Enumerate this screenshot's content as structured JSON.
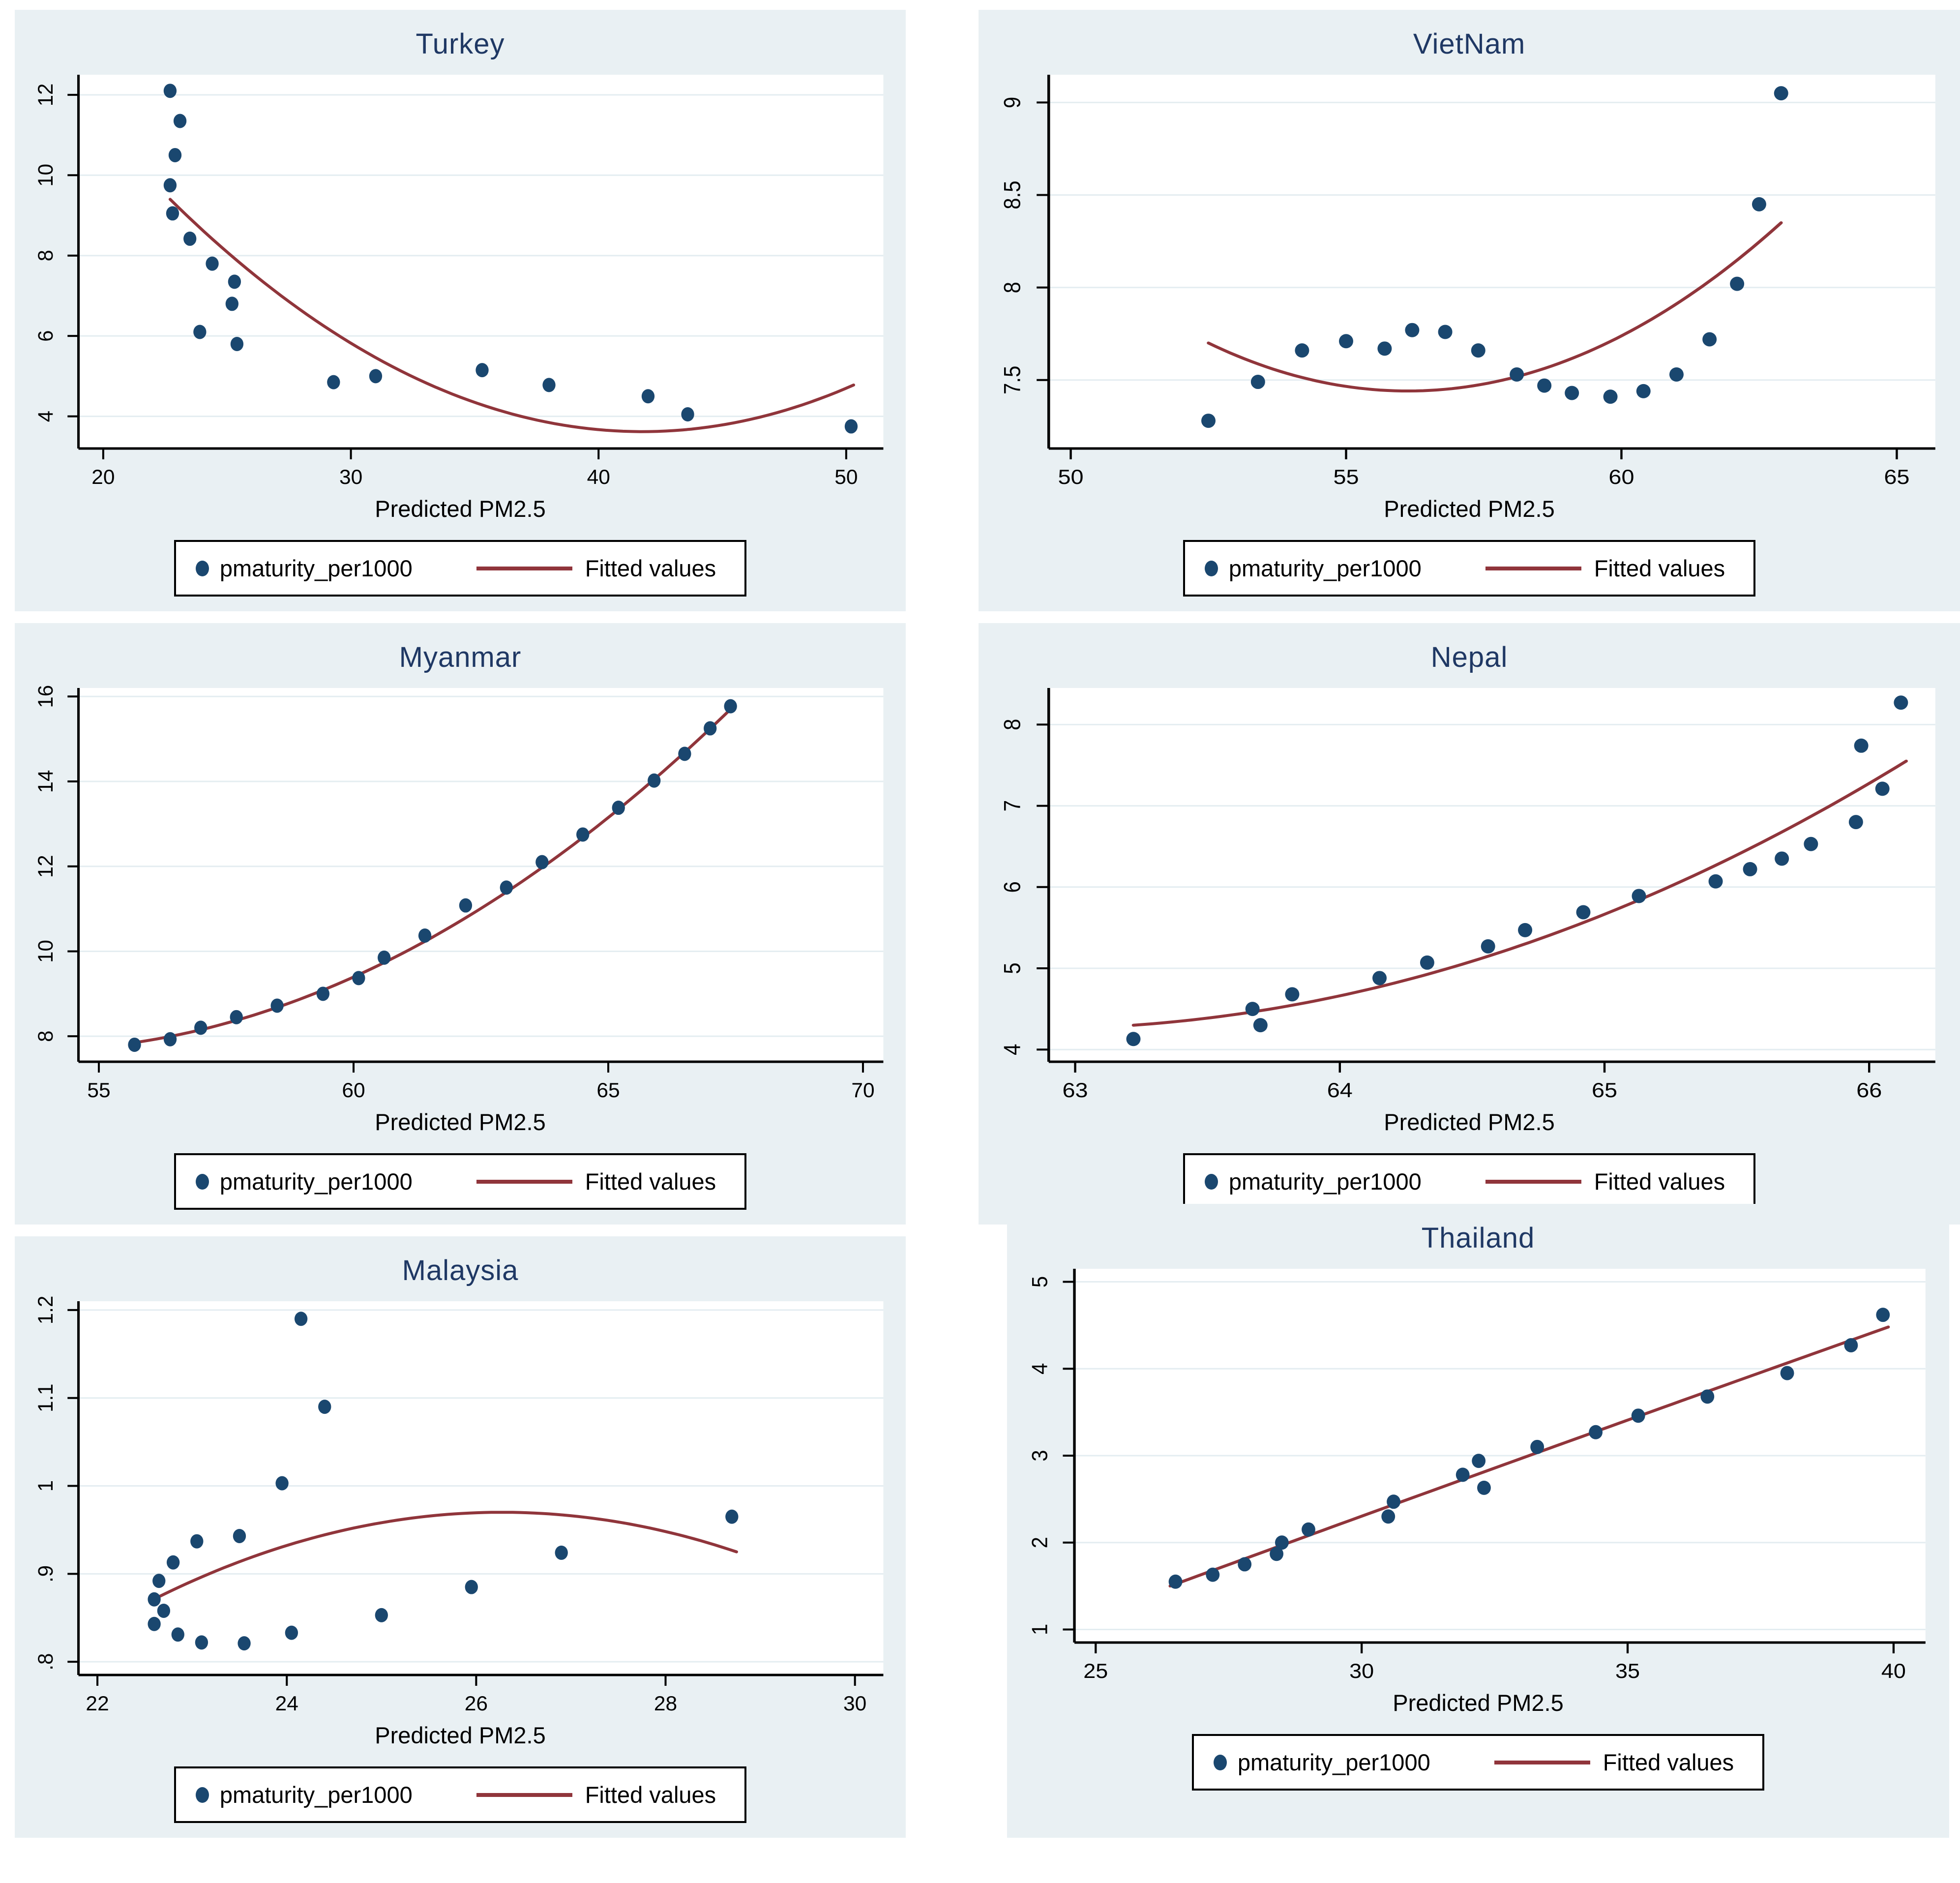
{
  "colors": {
    "marker": "#1a476f",
    "fit_line": "#90353b",
    "panel_bg": "#e9f0f3",
    "plot_bg": "#ffffff",
    "grid": "#e4edf1",
    "axis": "#000000",
    "title": "#1f3864",
    "tick_text": "#000000"
  },
  "chart_data": [
    {
      "type": "scatter",
      "title": "Turkey",
      "xlabel": "Predicted PM2.5",
      "legend": {
        "points_label": "pmaturity_per1000",
        "line_label": "Fitted values"
      },
      "xlim": [
        19.0,
        51.5
      ],
      "ylim": [
        3.2,
        12.5
      ],
      "xticks": {
        "values": [
          20,
          30,
          40,
          50
        ],
        "labels": [
          "20",
          "30",
          "40",
          "50"
        ]
      },
      "yticks": {
        "values": [
          4,
          6,
          8,
          10,
          12
        ],
        "labels": [
          "4",
          "6",
          "8",
          "10",
          "12"
        ]
      },
      "points": [
        [
          22.7,
          12.1
        ],
        [
          23.1,
          11.35
        ],
        [
          22.9,
          10.5
        ],
        [
          22.7,
          9.75
        ],
        [
          22.8,
          9.05
        ],
        [
          23.5,
          8.42
        ],
        [
          24.4,
          7.8
        ],
        [
          25.3,
          7.35
        ],
        [
          25.2,
          6.8
        ],
        [
          23.9,
          6.1
        ],
        [
          25.4,
          5.8
        ],
        [
          29.3,
          4.85
        ],
        [
          31.0,
          5.0
        ],
        [
          35.3,
          5.15
        ],
        [
          38.0,
          4.78
        ],
        [
          42.0,
          4.5
        ],
        [
          43.6,
          4.05
        ],
        [
          50.2,
          3.75
        ]
      ],
      "fit_quadratic_anchors": [
        [
          22.7,
          9.4
        ],
        [
          41.8,
          3.62
        ],
        [
          50.3,
          4.78
        ]
      ]
    },
    {
      "type": "scatter",
      "title": "VietNam",
      "xlabel": "Predicted PM2.5",
      "legend": {
        "points_label": "pmaturity_per1000",
        "line_label": "Fitted values"
      },
      "xlim": [
        49.6,
        65.7
      ],
      "ylim": [
        7.13,
        9.15
      ],
      "xticks": {
        "values": [
          50,
          55,
          60,
          65
        ],
        "labels": [
          "50",
          "55",
          "60",
          "65"
        ]
      },
      "yticks": {
        "values": [
          7.5,
          8,
          8.5,
          9
        ],
        "labels": [
          "7.5",
          "8",
          "8.5",
          "9"
        ]
      },
      "points": [
        [
          52.5,
          7.28
        ],
        [
          53.4,
          7.49
        ],
        [
          54.2,
          7.66
        ],
        [
          55.0,
          7.71
        ],
        [
          55.7,
          7.67
        ],
        [
          56.2,
          7.77
        ],
        [
          56.8,
          7.76
        ],
        [
          57.4,
          7.66
        ],
        [
          58.1,
          7.53
        ],
        [
          58.6,
          7.47
        ],
        [
          59.1,
          7.43
        ],
        [
          59.8,
          7.41
        ],
        [
          60.4,
          7.44
        ],
        [
          61.0,
          7.53
        ],
        [
          61.6,
          7.72
        ],
        [
          62.1,
          8.02
        ],
        [
          62.5,
          8.45
        ],
        [
          62.9,
          9.05
        ]
      ],
      "fit_quadratic_anchors": [
        [
          52.5,
          7.7
        ],
        [
          56.8,
          7.45
        ],
        [
          62.9,
          8.35
        ]
      ]
    },
    {
      "type": "scatter",
      "title": "Myanmar",
      "xlabel": "Predicted PM2.5",
      "legend": {
        "points_label": "pmaturity_per1000",
        "line_label": "Fitted values"
      },
      "xlim": [
        54.6,
        70.4
      ],
      "ylim": [
        7.4,
        16.2
      ],
      "xticks": {
        "values": [
          55,
          60,
          65,
          70
        ],
        "labels": [
          "55",
          "60",
          "65",
          "70"
        ]
      },
      "yticks": {
        "values": [
          8,
          10,
          12,
          14,
          16
        ],
        "labels": [
          "8",
          "10",
          "12",
          "14",
          "16"
        ]
      },
      "points": [
        [
          55.7,
          7.8
        ],
        [
          56.4,
          7.93
        ],
        [
          57.0,
          8.2
        ],
        [
          57.7,
          8.45
        ],
        [
          58.5,
          8.72
        ],
        [
          59.4,
          9.0
        ],
        [
          60.1,
          9.37
        ],
        [
          60.6,
          9.85
        ],
        [
          61.4,
          10.37
        ],
        [
          62.2,
          11.08
        ],
        [
          63.0,
          11.5
        ],
        [
          63.7,
          12.1
        ],
        [
          64.5,
          12.75
        ],
        [
          65.2,
          13.38
        ],
        [
          65.9,
          14.02
        ],
        [
          66.5,
          14.65
        ],
        [
          67.0,
          15.25
        ],
        [
          67.4,
          15.77
        ]
      ],
      "fit_quadratic_anchors": [
        [
          55.7,
          7.85
        ],
        [
          61.5,
          10.3
        ],
        [
          67.4,
          15.7
        ]
      ]
    },
    {
      "type": "scatter",
      "title": "Nepal",
      "xlabel": "Predicted PM2.5",
      "legend": {
        "points_label": "pmaturity_per1000",
        "line_label": "Fitted values"
      },
      "xlim": [
        62.9,
        66.25
      ],
      "ylim": [
        3.85,
        8.45
      ],
      "xticks": {
        "values": [
          63,
          64,
          65,
          66
        ],
        "labels": [
          "63",
          "64",
          "65",
          "66"
        ]
      },
      "yticks": {
        "values": [
          4,
          5,
          6,
          7,
          8
        ],
        "labels": [
          "4",
          "5",
          "6",
          "7",
          "8"
        ]
      },
      "points": [
        [
          63.22,
          4.13
        ],
        [
          63.67,
          4.5
        ],
        [
          63.7,
          4.3
        ],
        [
          63.82,
          4.68
        ],
        [
          64.15,
          4.88
        ],
        [
          64.33,
          5.07
        ],
        [
          64.56,
          5.27
        ],
        [
          64.7,
          5.47
        ],
        [
          64.92,
          5.69
        ],
        [
          65.13,
          5.89
        ],
        [
          65.42,
          6.07
        ],
        [
          65.55,
          6.22
        ],
        [
          65.67,
          6.35
        ],
        [
          65.78,
          6.53
        ],
        [
          65.95,
          6.8
        ],
        [
          65.97,
          7.74
        ],
        [
          66.05,
          7.21
        ],
        [
          66.12,
          8.27
        ]
      ],
      "fit_quadratic_anchors": [
        [
          63.22,
          4.3
        ],
        [
          64.7,
          5.3
        ],
        [
          66.14,
          7.55
        ]
      ]
    },
    {
      "type": "scatter",
      "title": "Malaysia",
      "xlabel": "Predicted PM2.5",
      "legend": {
        "points_label": "pmaturity_per1000",
        "line_label": "Fitted values"
      },
      "xlim": [
        21.8,
        30.3
      ],
      "ylim": [
        0.785,
        1.21
      ],
      "xticks": {
        "values": [
          22,
          24,
          26,
          28,
          30
        ],
        "labels": [
          "22",
          "24",
          "26",
          "28",
          "30"
        ]
      },
      "yticks": {
        "values": [
          0.8,
          0.9,
          1.0,
          1.1,
          1.2
        ],
        "labels": [
          ".8",
          ".9",
          "1",
          "1.1",
          "1.2"
        ]
      },
      "points": [
        [
          24.15,
          1.19
        ],
        [
          24.4,
          1.09
        ],
        [
          23.95,
          1.003
        ],
        [
          28.7,
          0.965
        ],
        [
          23.5,
          0.943
        ],
        [
          23.05,
          0.937
        ],
        [
          26.9,
          0.924
        ],
        [
          22.8,
          0.913
        ],
        [
          22.65,
          0.892
        ],
        [
          25.95,
          0.885
        ],
        [
          22.6,
          0.871
        ],
        [
          22.7,
          0.858
        ],
        [
          25.0,
          0.853
        ],
        [
          22.6,
          0.843
        ],
        [
          24.05,
          0.833
        ],
        [
          22.85,
          0.831
        ],
        [
          23.1,
          0.822
        ],
        [
          23.55,
          0.821
        ]
      ],
      "fit_quadratic_anchors": [
        [
          22.65,
          0.874
        ],
        [
          26.3,
          0.97
        ],
        [
          28.75,
          0.925
        ]
      ]
    },
    {
      "type": "scatter",
      "title": "Thailand",
      "xlabel": "Predicted PM2.5",
      "legend": {
        "points_label": "pmaturity_per1000",
        "line_label": "Fitted values"
      },
      "xlim": [
        24.6,
        40.6
      ],
      "ylim": [
        0.85,
        5.15
      ],
      "xticks": {
        "values": [
          25,
          30,
          35,
          40
        ],
        "labels": [
          "25",
          "30",
          "35",
          "40"
        ]
      },
      "yticks": {
        "values": [
          1,
          2,
          3,
          4,
          5
        ],
        "labels": [
          "1",
          "2",
          "3",
          "4",
          "5"
        ]
      },
      "points": [
        [
          26.5,
          1.55
        ],
        [
          27.2,
          1.63
        ],
        [
          27.8,
          1.75
        ],
        [
          28.4,
          1.87
        ],
        [
          28.5,
          2.0
        ],
        [
          29.0,
          2.15
        ],
        [
          30.5,
          2.3
        ],
        [
          30.6,
          2.47
        ],
        [
          31.9,
          2.78
        ],
        [
          32.2,
          2.94
        ],
        [
          32.3,
          2.63
        ],
        [
          33.3,
          3.1
        ],
        [
          34.4,
          3.27
        ],
        [
          35.2,
          3.46
        ],
        [
          36.5,
          3.68
        ],
        [
          38.0,
          3.95
        ],
        [
          39.2,
          4.27
        ],
        [
          39.8,
          4.62
        ]
      ],
      "fit_quadratic_anchors": [
        [
          26.4,
          1.5
        ],
        [
          33.1,
          2.99
        ],
        [
          39.9,
          4.48
        ]
      ]
    }
  ]
}
